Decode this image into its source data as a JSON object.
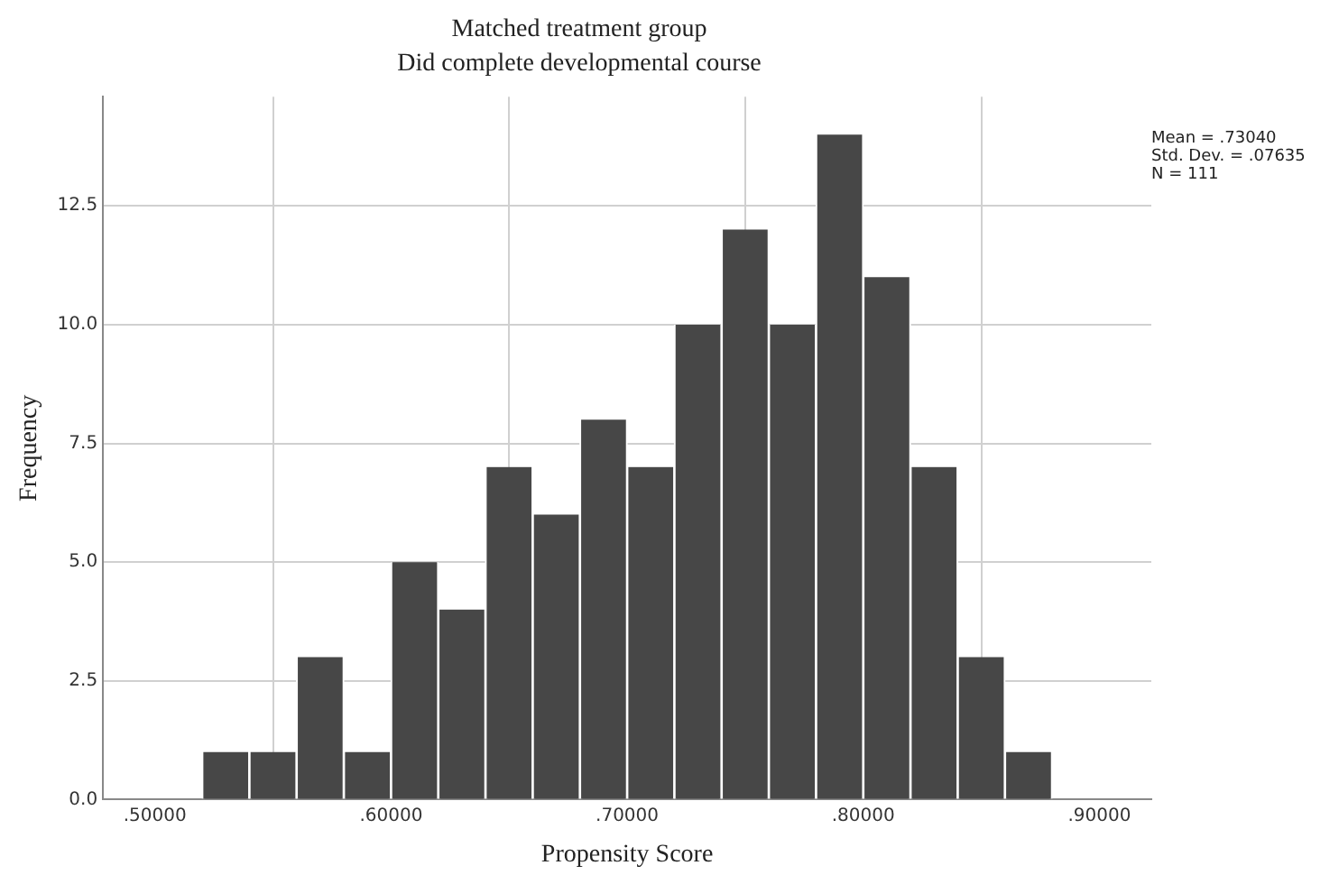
{
  "chart_data": {
    "type": "histogram",
    "title": "Matched treatment group",
    "subtitle": "Did complete developmental course",
    "xlabel": "Propensity Score",
    "ylabel": "Frequency",
    "bins": [
      0.52,
      0.54,
      0.56,
      0.58,
      0.6,
      0.62,
      0.64,
      0.66,
      0.68,
      0.7,
      0.72,
      0.74,
      0.76,
      0.78,
      0.8,
      0.82,
      0.84,
      0.86,
      0.88
    ],
    "values": [
      1,
      1,
      3,
      1,
      5,
      4,
      7,
      6,
      8,
      7,
      10,
      12,
      10,
      14,
      11,
      7,
      3,
      1
    ],
    "color": "#474747",
    "xlim": [
      0.478,
      0.922
    ],
    "xticks": [
      {
        "value": 0.5,
        "label": ".50000"
      },
      {
        "value": 0.6,
        "label": ".60000"
      },
      {
        "value": 0.7,
        "label": ".70000"
      },
      {
        "value": 0.8,
        "label": ".80000"
      },
      {
        "value": 0.9,
        "label": ".90000"
      }
    ],
    "ylim": [
      0,
      14.8
    ],
    "yticks": [
      {
        "value": 0,
        "label": "0.0"
      },
      {
        "value": 2.5,
        "label": "2.5"
      },
      {
        "value": 5,
        "label": "5.0"
      },
      {
        "value": 7.5,
        "label": "7.5"
      },
      {
        "value": 10,
        "label": "10.0"
      },
      {
        "value": 12.5,
        "label": "12.5"
      }
    ],
    "grid": true,
    "annotations": [
      "Mean = .73040\nStd. Dev. = .07635\nN = 111"
    ]
  }
}
